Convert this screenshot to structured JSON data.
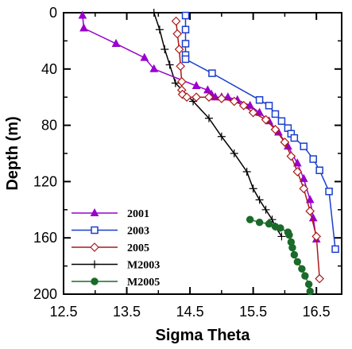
{
  "chart_data": {
    "type": "line",
    "title": "",
    "xlabel": "Sigma Theta",
    "ylabel": "Depth (m)",
    "xlim": [
      12.5,
      16.9
    ],
    "ylim": [
      0,
      200
    ],
    "y_inverted": true,
    "x_ticks": [
      "12.5",
      "13.5",
      "14.5",
      "15.5",
      "16.5"
    ],
    "x_tick_values": [
      12.5,
      13.5,
      14.5,
      15.5,
      16.5
    ],
    "x_minor_ticks": [
      13.0,
      14.0,
      15.0,
      16.0
    ],
    "y_ticks": [
      "0",
      "40",
      "80",
      "120",
      "160",
      "200"
    ],
    "y_tick_values": [
      0,
      40,
      80,
      120,
      160,
      200
    ],
    "y_minor_ticks": [
      20,
      60,
      100,
      140,
      180
    ],
    "legend_position": "bottom-left",
    "grid": false,
    "series": [
      {
        "name": "2001",
        "color": "#9900cc",
        "marker": "filled-triangle",
        "x": [
          12.8,
          12.82,
          13.33,
          13.78,
          13.93,
          14.6,
          14.78,
          14.84,
          14.9,
          15.0,
          15.1,
          15.25,
          15.45,
          15.6,
          15.75,
          15.9,
          16.05,
          16.2,
          16.3,
          16.4,
          16.45,
          16.5
        ],
        "y": [
          2,
          11,
          22,
          32,
          40,
          52,
          55,
          58,
          60,
          60,
          60,
          62,
          66,
          71,
          77,
          85,
          95,
          107,
          118,
          133,
          146,
          161
        ]
      },
      {
        "name": "2003",
        "color": "#1a3fcc",
        "marker": "open-square",
        "x": [
          14.43,
          14.43,
          14.43,
          14.43,
          14.43,
          14.85,
          15.6,
          15.75,
          15.85,
          15.95,
          16.05,
          16.1,
          16.15,
          16.3,
          16.45,
          16.55,
          16.7,
          16.8
        ],
        "y": [
          2,
          12,
          22,
          30,
          33,
          43,
          62,
          66,
          72,
          77,
          82,
          86,
          89,
          95,
          104,
          112,
          127,
          168
        ]
      },
      {
        "name": "2005",
        "color": "#aa1a1a",
        "marker": "open-diamond",
        "x": [
          14.28,
          14.3,
          14.33,
          14.35,
          14.37,
          14.37,
          14.38,
          14.45,
          14.6,
          14.8,
          15.0,
          15.2,
          15.35,
          15.5,
          15.7,
          15.85,
          16.0,
          16.1,
          16.2,
          16.3,
          16.4,
          16.5,
          16.55
        ],
        "y": [
          6,
          15,
          26,
          38,
          49,
          55,
          58,
          60,
          60,
          60,
          61,
          63,
          66,
          71,
          76,
          83,
          92,
          102,
          113,
          125,
          141,
          159,
          189
        ]
      },
      {
        "name": "M2003",
        "color": "#000000",
        "marker": "cross",
        "x": [
          13.93,
          14.02,
          14.1,
          14.18,
          14.27,
          14.55,
          14.8,
          15.0,
          15.2,
          15.4,
          15.5,
          15.6,
          15.7,
          15.8,
          15.85,
          15.95
        ],
        "y": [
          0,
          12,
          26,
          37,
          50,
          63,
          75,
          88,
          100,
          113,
          125,
          133,
          140,
          147,
          152,
          159
        ]
      },
      {
        "name": "M2005",
        "color": "#1a6a2a",
        "marker": "filled-circle",
        "x": [
          15.45,
          15.6,
          15.75,
          15.85,
          15.93,
          16.05,
          16.07,
          16.1,
          16.12,
          16.15,
          16.2,
          16.27,
          16.32,
          16.38,
          16.4
        ],
        "y": [
          147,
          149,
          150,
          152,
          153,
          156,
          158,
          163,
          167,
          172,
          177,
          182,
          187,
          193,
          198
        ]
      }
    ]
  }
}
